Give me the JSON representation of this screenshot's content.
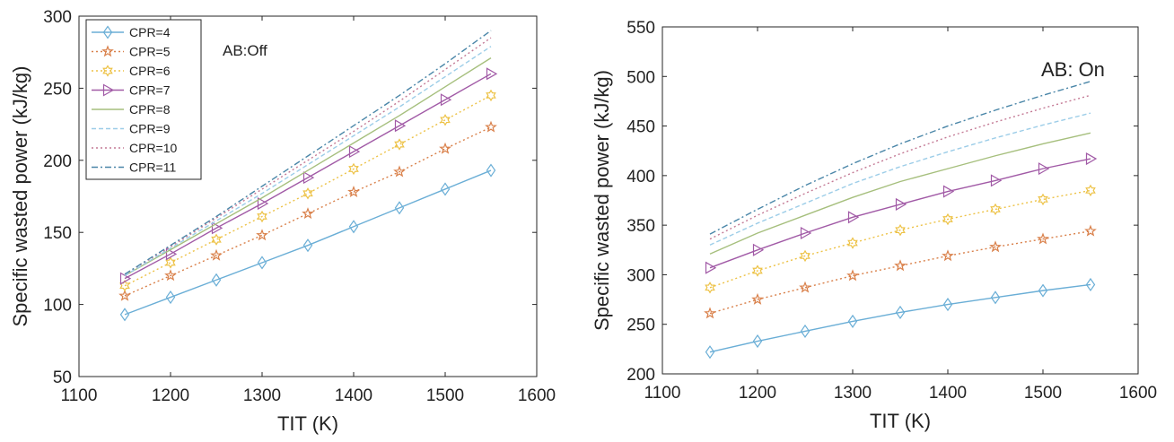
{
  "chart_data": [
    {
      "type": "line",
      "annotation": "AB:Off",
      "xlabel": "TIT (K)",
      "ylabel": "Specific wasted power (kJ/kg)",
      "xlim": [
        1100,
        1600
      ],
      "ylim": [
        50,
        300
      ],
      "xticks": [
        1100,
        1200,
        1300,
        1400,
        1500,
        1600
      ],
      "yticks": [
        50,
        100,
        150,
        200,
        250,
        300
      ],
      "legend_placement": "top-left",
      "grid": false,
      "x": [
        1150,
        1200,
        1250,
        1300,
        1350,
        1400,
        1450,
        1500,
        1550
      ],
      "series": [
        {
          "name": "CPR=4",
          "color": "#6aaed6",
          "dash": "solid",
          "marker": "diamond",
          "values": [
            93,
            105,
            117,
            129,
            141,
            154,
            167,
            180,
            193
          ]
        },
        {
          "name": "CPR=5",
          "color": "#d9804a",
          "dash": "dotted",
          "marker": "star",
          "values": [
            106,
            120,
            134,
            148,
            163,
            178,
            192,
            208,
            223
          ]
        },
        {
          "name": "CPR=6",
          "color": "#edc246",
          "dash": "dotted",
          "marker": "hexagram",
          "values": [
            113,
            129,
            145,
            161,
            177,
            194,
            211,
            228,
            245
          ]
        },
        {
          "name": "CPR=7",
          "color": "#a15aa6",
          "dash": "solid",
          "marker": "triangle",
          "values": [
            118,
            135,
            153,
            170,
            188,
            206,
            224,
            242,
            260
          ]
        },
        {
          "name": "CPR=8",
          "color": "#a6bf7d",
          "dash": "solid",
          "marker": "none",
          "values": [
            120,
            138,
            156,
            174,
            193,
            212,
            231,
            251,
            271
          ]
        },
        {
          "name": "CPR=9",
          "color": "#9ccde8",
          "dash": "dashed",
          "marker": "none",
          "values": [
            120,
            139,
            158,
            177,
            197,
            217,
            237,
            258,
            279
          ]
        },
        {
          "name": "CPR=10",
          "color": "#c47a95",
          "dash": "dotted",
          "marker": "none",
          "values": [
            121,
            140,
            160,
            180,
            200,
            220,
            241,
            263,
            285
          ]
        },
        {
          "name": "CPR=11",
          "color": "#4a86a8",
          "dash": "dashdot",
          "marker": "none",
          "values": [
            121,
            141,
            161,
            182,
            203,
            224,
            245,
            267,
            290
          ]
        }
      ]
    },
    {
      "type": "line",
      "annotation": "AB: On",
      "xlabel": "TIT (K)",
      "ylabel": "Specific wasted power (kJ/kg)",
      "xlim": [
        1100,
        1600
      ],
      "ylim": [
        200,
        550
      ],
      "xticks": [
        1100,
        1200,
        1300,
        1400,
        1500,
        1600
      ],
      "yticks": [
        200,
        250,
        300,
        350,
        400,
        450,
        500,
        550
      ],
      "grid": false,
      "x": [
        1150,
        1200,
        1250,
        1300,
        1350,
        1400,
        1450,
        1500,
        1550
      ],
      "series": [
        {
          "color": "#6aaed6",
          "dash": "solid",
          "marker": "diamond",
          "values": [
            222,
            233,
            243,
            253,
            262,
            270,
            277,
            284,
            290
          ]
        },
        {
          "color": "#d9804a",
          "dash": "dotted",
          "marker": "star",
          "values": [
            261,
            275,
            287,
            299,
            309,
            319,
            328,
            336,
            344
          ]
        },
        {
          "color": "#edc246",
          "dash": "dotted",
          "marker": "hexagram",
          "values": [
            287,
            304,
            319,
            332,
            345,
            356,
            366,
            376,
            385
          ]
        },
        {
          "color": "#a15aa6",
          "dash": "solid",
          "marker": "triangle",
          "values": [
            307,
            325,
            342,
            358,
            371,
            384,
            395,
            407,
            417
          ]
        },
        {
          "color": "#a6bf7d",
          "dash": "solid",
          "marker": "none",
          "values": [
            321,
            342,
            360,
            378,
            394,
            407,
            420,
            432,
            443
          ]
        },
        {
          "color": "#9ccde8",
          "dash": "dashed",
          "marker": "none",
          "values": [
            330,
            352,
            372,
            392,
            409,
            424,
            438,
            451,
            463
          ]
        },
        {
          "color": "#c47a95",
          "dash": "dotted",
          "marker": "none",
          "values": [
            336,
            360,
            382,
            403,
            422,
            439,
            454,
            468,
            481
          ]
        },
        {
          "color": "#4a86a8",
          "dash": "dashdot",
          "marker": "none",
          "values": [
            341,
            366,
            390,
            412,
            432,
            450,
            466,
            481,
            495
          ]
        }
      ]
    }
  ]
}
